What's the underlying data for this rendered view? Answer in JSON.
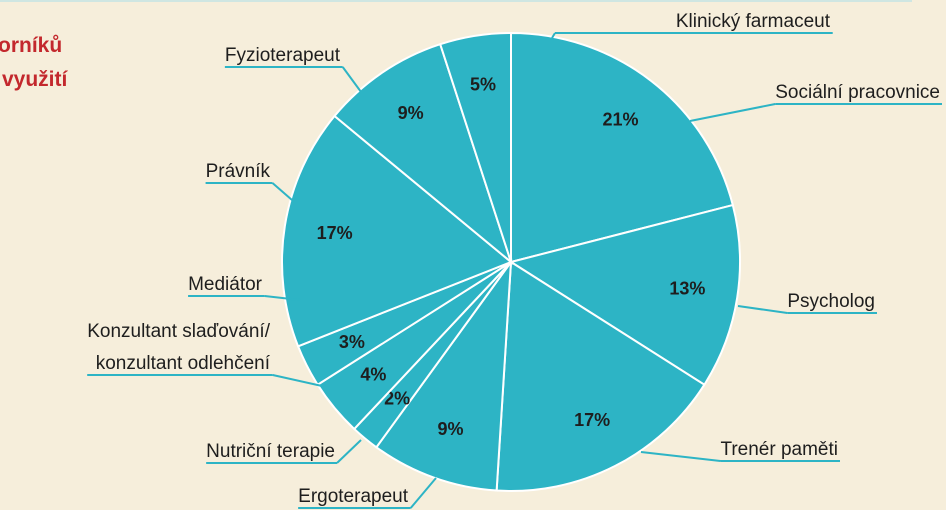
{
  "chart_data": {
    "type": "pie",
    "title_lines": [
      "orníků",
      "využití"
    ],
    "categories": [
      "Sociální pracovnice",
      "Psycholog",
      "Trenér paměti",
      "Ergoterapeut",
      "Nutriční terapie",
      [
        "Konzultant slaďování/",
        "konzultant odlehčení"
      ],
      "Mediátor",
      "Právník",
      "Fyzioterapeut",
      "Klinický farmaceut"
    ],
    "values": [
      21,
      13,
      17,
      9,
      2,
      4,
      3,
      17,
      9,
      5
    ],
    "value_labels": [
      "21%",
      "13%",
      "17%",
      "9%",
      "2%",
      "4%",
      "3%",
      "17%",
      "9%",
      "5%"
    ],
    "color": "#2db4c5"
  }
}
